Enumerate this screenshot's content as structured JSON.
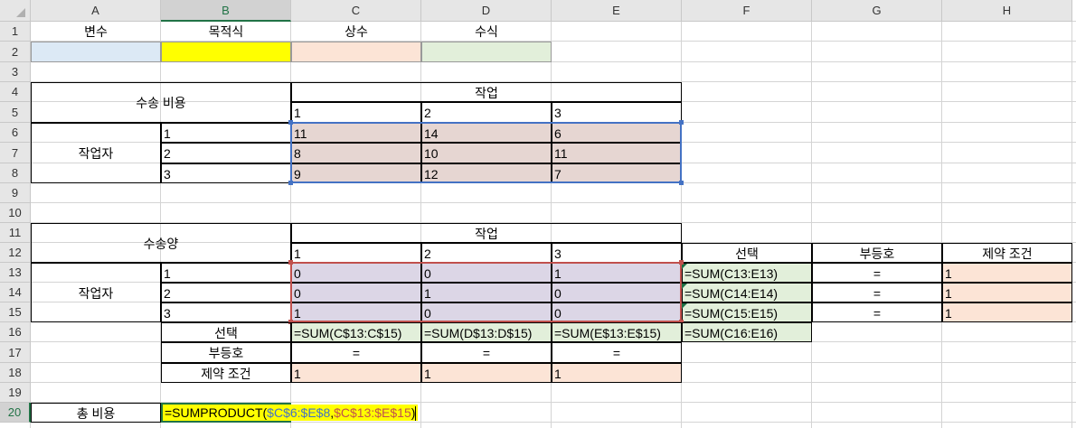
{
  "columns": [
    "A",
    "B",
    "C",
    "D",
    "E",
    "F",
    "G",
    "H"
  ],
  "rows": [
    "1",
    "2",
    "3",
    "4",
    "5",
    "6",
    "7",
    "8",
    "9",
    "10",
    "11",
    "12",
    "13",
    "14",
    "15",
    "16",
    "17",
    "18",
    "19",
    "20"
  ],
  "legend": {
    "variable": "변수",
    "objective": "목적식",
    "constant": "상수",
    "formula": "수식"
  },
  "cost_table": {
    "title": "수송 비용",
    "task_header": "작업",
    "tasks": [
      "1",
      "2",
      "3"
    ],
    "worker_label": "작업자",
    "workers": [
      "1",
      "2",
      "3"
    ],
    "values": [
      [
        "11",
        "14",
        "6"
      ],
      [
        "8",
        "10",
        "11"
      ],
      [
        "9",
        "12",
        "7"
      ]
    ]
  },
  "qty_table": {
    "title": "수송양",
    "task_header": "작업",
    "tasks": [
      "1",
      "2",
      "3"
    ],
    "worker_label": "작업자",
    "workers": [
      "1",
      "2",
      "3"
    ],
    "values": [
      [
        "0",
        "0",
        "1"
      ],
      [
        "0",
        "1",
        "0"
      ],
      [
        "1",
        "0",
        "0"
      ]
    ],
    "col_headers": {
      "selection": "선택",
      "inequality": "부등호",
      "constraint": "제약 조건"
    },
    "row_selection": [
      "=SUM(C13:E13)",
      "=SUM(C14:E14)",
      "=SUM(C15:E15)"
    ],
    "row_inequality": [
      "=",
      "=",
      "="
    ],
    "row_constraint": [
      "1",
      "1",
      "1"
    ],
    "bottom_labels": {
      "selection": "선택",
      "inequality": "부등호",
      "constraint": "제약 조건"
    },
    "col_selection": [
      "=SUM(C$13:C$15)",
      "=SUM(D$13:D$15)",
      "=SUM(E$13:E$15)",
      "=SUM(C16:E16)"
    ],
    "col_inequality": [
      "=",
      "=",
      "="
    ],
    "col_constraint": [
      "1",
      "1",
      "1"
    ]
  },
  "total": {
    "label": "총 비용",
    "formula_prefix": "=SUMPRODUCT(",
    "ref1": "$C$6:$E$8",
    "sep": ",",
    "ref2": "$C$13:$E$15",
    "suffix": ")"
  },
  "colors": {
    "variable": "#dce9f5",
    "objective": "#ffff00",
    "constant": "#fce4d6",
    "formula": "#e2efda",
    "cost_fill": "#e6d6d2",
    "qty_fill": "#dcd6e6",
    "ref_blue": "#4472c4",
    "ref_red": "#c0504d",
    "select_green": "#217346",
    "header_gray": "#e6e6e6"
  }
}
